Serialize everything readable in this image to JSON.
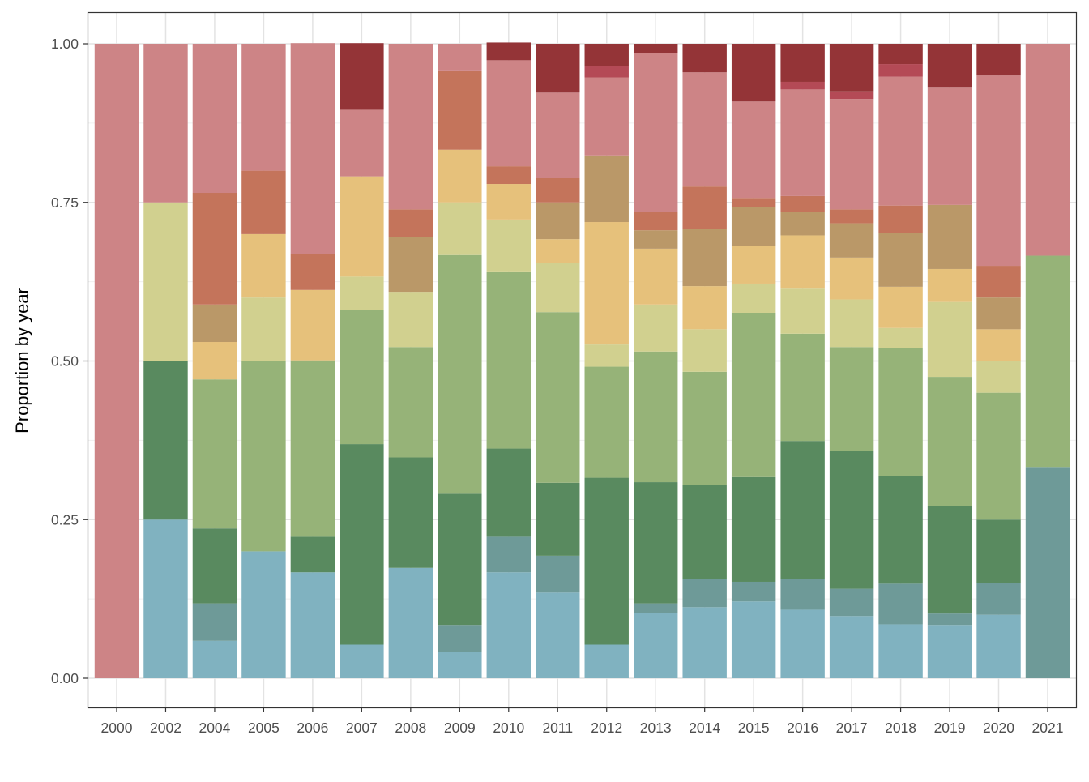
{
  "chart_data": {
    "type": "bar",
    "stacked": true,
    "title": "",
    "xlabel": "",
    "ylabel": "Proportion by year",
    "ylim": [
      0,
      1
    ],
    "yticks": [
      "0.00",
      "0.25",
      "0.50",
      "0.75",
      "1.00"
    ],
    "grid": true,
    "legend": "none",
    "categories": [
      "2000",
      "2002",
      "2004",
      "2005",
      "2006",
      "2007",
      "2008",
      "2009",
      "2010",
      "2011",
      "2012",
      "2013",
      "2014",
      "2015",
      "2016",
      "2017",
      "2018",
      "2019",
      "2020",
      "2021"
    ],
    "series": [
      {
        "color": "#80b2c0",
        "values": [
          0,
          0.25,
          0.059,
          0.2,
          0.167,
          0.053,
          0.174,
          0.042,
          0.167,
          0.135,
          0.053,
          0.103,
          0.112,
          0.121,
          0.108,
          0.098,
          0.085,
          0.084,
          0.1,
          0
        ]
      },
      {
        "color": "#6e9a98",
        "values": [
          0,
          0,
          0.059,
          0,
          0,
          0,
          0,
          0.042,
          0.056,
          0.058,
          0,
          0.015,
          0.044,
          0.031,
          0.048,
          0.043,
          0.064,
          0.018,
          0.05,
          0.333
        ]
      },
      {
        "color": "#598a5f",
        "values": [
          0,
          0.25,
          0.118,
          0,
          0.056,
          0.316,
          0.174,
          0.208,
          0.139,
          0.115,
          0.263,
          0.191,
          0.148,
          0.165,
          0.218,
          0.217,
          0.17,
          0.169,
          0.1,
          0
        ]
      },
      {
        "color": "#96b378",
        "values": [
          0,
          0,
          0.235,
          0.3,
          0.278,
          0.211,
          0.174,
          0.375,
          0.278,
          0.269,
          0.175,
          0.206,
          0.179,
          0.259,
          0.169,
          0.164,
          0.202,
          0.204,
          0.2,
          0.333
        ]
      },
      {
        "color": "#d1d08f",
        "values": [
          0,
          0.25,
          0,
          0.1,
          0,
          0.053,
          0.087,
          0.083,
          0.083,
          0.077,
          0.035,
          0.074,
          0.067,
          0.046,
          0.071,
          0.075,
          0.031,
          0.118,
          0.05,
          0
        ]
      },
      {
        "color": "#e6c17b",
        "values": [
          0,
          0,
          0.059,
          0.1,
          0.111,
          0.158,
          0,
          0.083,
          0.056,
          0.038,
          0.193,
          0.088,
          0.068,
          0.06,
          0.084,
          0.066,
          0.065,
          0.052,
          0.05,
          0
        ]
      },
      {
        "color": "#ba9868",
        "values": [
          0,
          0,
          0.059,
          0,
          0,
          0,
          0.087,
          0,
          0,
          0.058,
          0.105,
          0.029,
          0.09,
          0.061,
          0.037,
          0.054,
          0.085,
          0.101,
          0.05,
          0
        ]
      },
      {
        "color": "#c4745b",
        "values": [
          0,
          0,
          0.176,
          0.1,
          0.056,
          0,
          0.043,
          0.125,
          0.028,
          0.038,
          0,
          0.029,
          0.067,
          0.014,
          0.025,
          0.022,
          0.043,
          0,
          0.05,
          0
        ]
      },
      {
        "color": "#cd8486",
        "values": [
          1,
          0.25,
          0.235,
          0.2,
          0.333,
          0.105,
          0.261,
          0.042,
          0.167,
          0.135,
          0.123,
          0.25,
          0.18,
          0.152,
          0.168,
          0.174,
          0.203,
          0.186,
          0.3,
          0.334
        ]
      },
      {
        "color": "#b44a56",
        "values": [
          0,
          0,
          0,
          0,
          0,
          0,
          0,
          0,
          0,
          0,
          0.018,
          0,
          0,
          0,
          0.012,
          0.012,
          0.02,
          0,
          0,
          0
        ]
      },
      {
        "color": "#943437",
        "values": [
          0,
          0,
          0,
          0,
          0,
          0.105,
          0,
          0,
          0.028,
          0.077,
          0.035,
          0.015,
          0.045,
          0.091,
          0.06,
          0.075,
          0.032,
          0.068,
          0.05,
          0
        ]
      }
    ]
  }
}
